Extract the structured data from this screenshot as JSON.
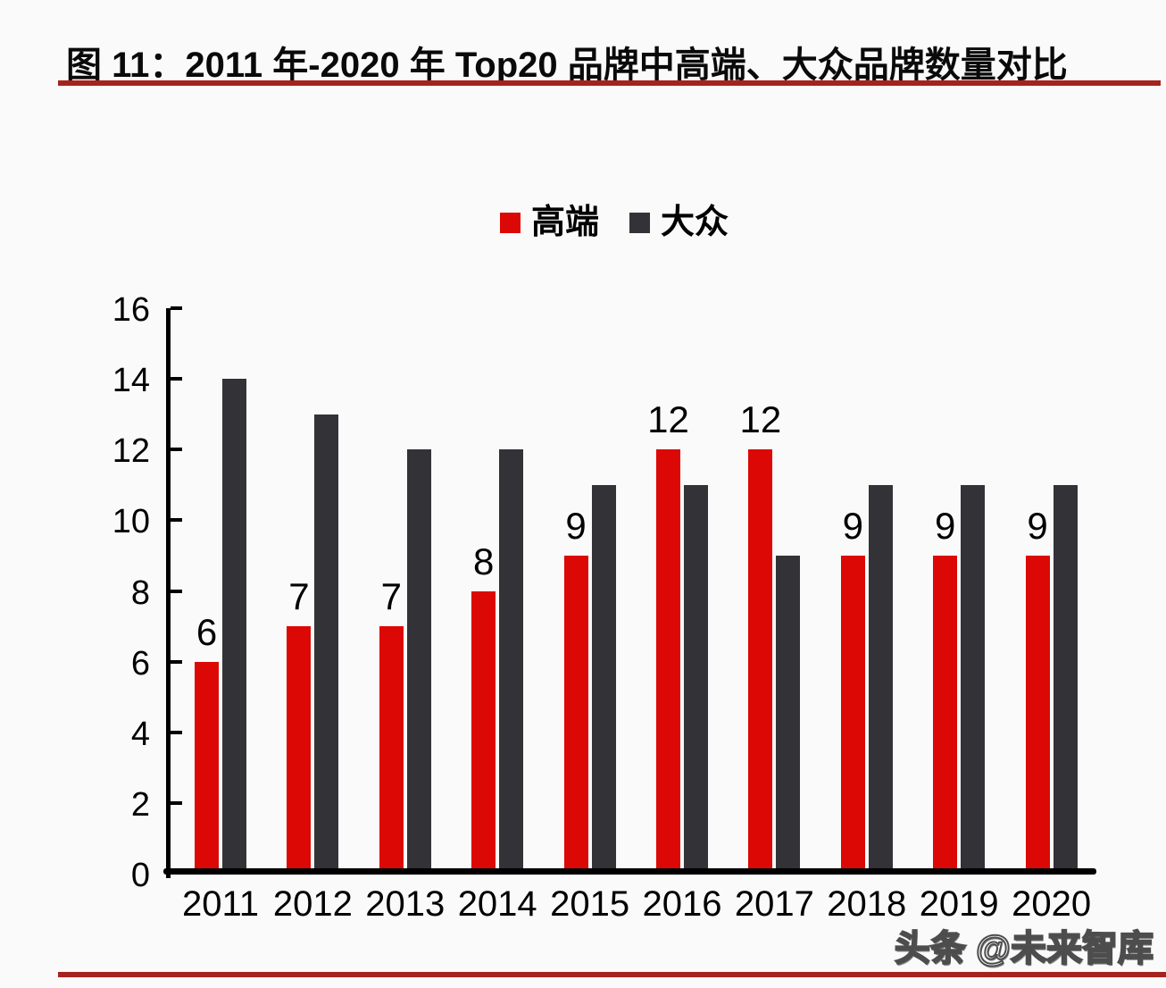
{
  "title": "图 11：2011 年-2020 年 Top20 品牌中高端、大众品牌数量对比",
  "watermark": "头条 @未来智库",
  "colors": {
    "premium_series": "#dc0806",
    "mass_series": "#333237",
    "divider_rule": "#a5231e",
    "axis": "#000000",
    "background": "#fbfafa"
  },
  "chart_data": {
    "type": "bar",
    "title": "图 11：2011 年-2020 年 Top20 品牌中高端、大众品牌数量对比",
    "categories": [
      "2011",
      "2012",
      "2013",
      "2014",
      "2015",
      "2016",
      "2017",
      "2018",
      "2019",
      "2020"
    ],
    "series": [
      {
        "name": "高端",
        "color": "#dc0806",
        "values": [
          6,
          7,
          7,
          8,
          9,
          12,
          12,
          9,
          9,
          9
        ],
        "data_labels": [
          "6",
          "7",
          "7",
          "8",
          "9",
          "12",
          "12",
          "9",
          "9",
          "9"
        ]
      },
      {
        "name": "大众",
        "color": "#333237",
        "values": [
          14,
          13,
          12,
          12,
          11,
          11,
          9,
          11,
          11,
          11
        ],
        "data_labels": []
      }
    ],
    "xlabel": "",
    "ylabel": "",
    "ylim": [
      0,
      16
    ],
    "yticks": [
      0,
      2,
      4,
      6,
      8,
      10,
      12,
      14,
      16
    ],
    "grid": false,
    "legend_position": "top-center"
  }
}
